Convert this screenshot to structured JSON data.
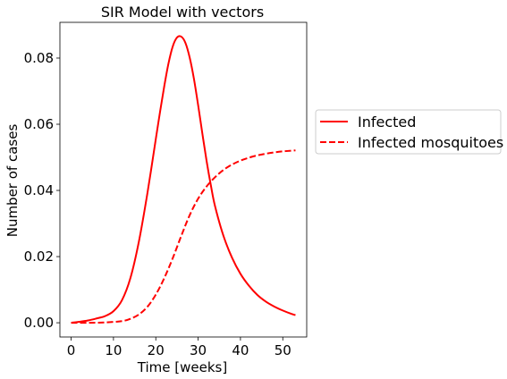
{
  "chart_data": {
    "type": "line",
    "title": "SIR Model with vectors",
    "xlabel": "Time [weeks]",
    "ylabel": "Number of cases",
    "xlim": [
      -2.65,
      55.65
    ],
    "ylim": [
      -0.0043,
      0.0908
    ],
    "xticks": [
      0,
      10,
      20,
      30,
      40,
      50
    ],
    "yticks": [
      0.0,
      0.02,
      0.04,
      0.06,
      0.08
    ],
    "ytick_labels": [
      "0.00",
      "0.02",
      "0.04",
      "0.06",
      "0.08"
    ],
    "grid": false,
    "legend_placement": "outside-right",
    "colors": {
      "line": "#ff0000",
      "axis": "#000000"
    },
    "series": [
      {
        "name": "Infected",
        "style": "solid",
        "x": [
          0,
          2,
          4,
          6,
          8,
          10,
          12,
          14,
          16,
          18,
          20,
          21,
          22,
          23,
          24,
          25,
          26,
          27,
          28,
          29,
          30,
          31,
          32,
          33,
          34,
          36,
          38,
          40,
          42,
          44,
          46,
          48,
          50,
          52,
          53
        ],
        "y": [
          0.0,
          0.0003,
          0.0007,
          0.0013,
          0.002,
          0.0035,
          0.0068,
          0.0135,
          0.0245,
          0.039,
          0.0555,
          0.0637,
          0.0715,
          0.0784,
          0.0835,
          0.0862,
          0.0865,
          0.0846,
          0.0802,
          0.0738,
          0.0658,
          0.0572,
          0.0489,
          0.0416,
          0.0352,
          0.0262,
          0.0197,
          0.0148,
          0.0112,
          0.0084,
          0.0064,
          0.0049,
          0.0037,
          0.0027,
          0.0023
        ]
      },
      {
        "name": "Infected mosquitoes",
        "style": "dashed",
        "x": [
          0,
          4,
          8,
          12,
          14,
          16,
          18,
          20,
          22,
          24,
          26,
          28,
          30,
          32,
          34,
          36,
          38,
          40,
          42,
          44,
          46,
          48,
          50,
          52,
          53
        ],
        "y": [
          0.0,
          0.0,
          0.0001,
          0.0005,
          0.0012,
          0.0025,
          0.0048,
          0.0085,
          0.0135,
          0.0195,
          0.0262,
          0.0325,
          0.0375,
          0.0412,
          0.044,
          0.0462,
          0.0478,
          0.049,
          0.0499,
          0.0506,
          0.0511,
          0.0515,
          0.0518,
          0.052,
          0.0521
        ]
      }
    ]
  }
}
